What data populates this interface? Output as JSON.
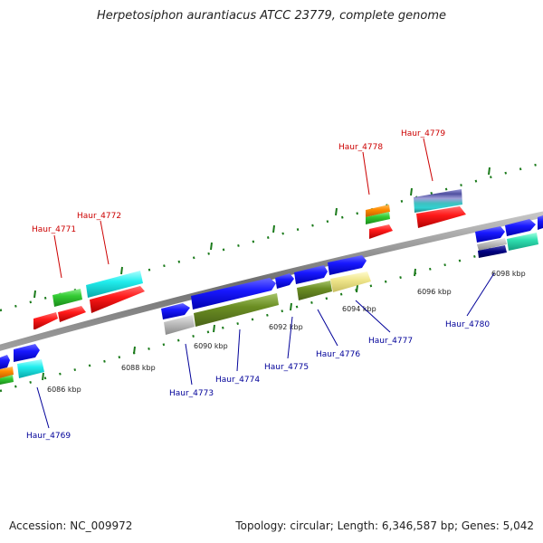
{
  "title": "Herpetosiphon aurantiacus ATCC 23779, complete genome",
  "footer": {
    "accession": "Accession: NC_009972",
    "summary": "Topology: circular; Length: 6,346,587 bp; Genes: 5,042"
  },
  "ticks": [
    "6086 kbp",
    "6088 kbp",
    "6090 kbp",
    "6092 kbp",
    "6094 kbp",
    "6096 kbp",
    "6098 kbp"
  ],
  "genes_top": [
    "Haur_4771",
    "Haur_4772",
    "Haur_4778",
    "Haur_4779"
  ],
  "genes_bottom": [
    "Haur_4769",
    "Haur_4773",
    "Haur_4774",
    "Haur_4775",
    "Haur_4776",
    "Haur_4777",
    "Haur_4780"
  ],
  "colors": {
    "top_label": "#cc0000",
    "bottom_label": "#000099",
    "backbone": "#8a8a8a",
    "tick": "#1a7a1a"
  }
}
